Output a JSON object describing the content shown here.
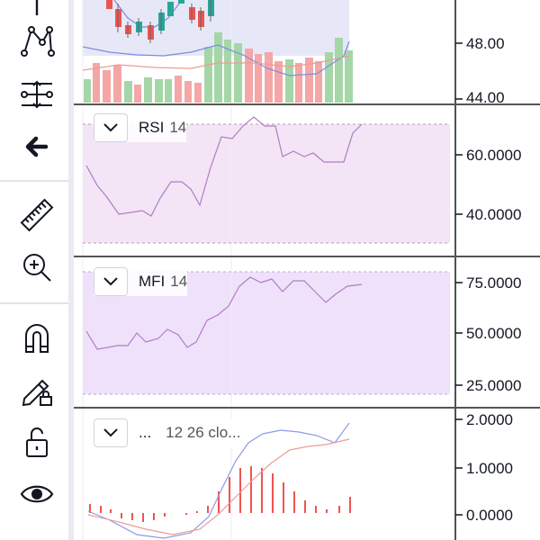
{
  "toolbar": {
    "tools": [
      {
        "name": "pitchfork-icon"
      },
      {
        "name": "pattern-icon"
      },
      {
        "name": "measure-projection-icon"
      },
      {
        "name": "back-arrow-icon"
      },
      {
        "name": "ruler-icon"
      },
      {
        "name": "zoom-in-icon"
      },
      {
        "name": "magnet-icon"
      },
      {
        "name": "lock-drawing-icon"
      },
      {
        "name": "unlock-icon"
      },
      {
        "name": "eye-icon"
      }
    ]
  },
  "panes": {
    "price": {
      "axis_labels": [
        "48.00",
        "44.00"
      ]
    },
    "rsi": {
      "name": "RSI",
      "param": "14",
      "axis_labels": [
        "60.0000",
        "40.0000"
      ]
    },
    "mfi": {
      "name": "MFI",
      "param": "14",
      "axis_labels": [
        "75.0000",
        "50.0000",
        "25.0000"
      ]
    },
    "macd": {
      "name": "...",
      "param": "12 26 clo...",
      "axis_labels": [
        "2.0000",
        "1.0000",
        "0.0000"
      ]
    }
  },
  "colors": {
    "up": "#26a69a",
    "down": "#ef5350",
    "rsi_fill": "#f3e5f5",
    "mfi_fill": "#f0e1fb",
    "indicator_line": "#9c27b0",
    "macd_line": "#7e8ce0",
    "signal_line": "#ef7373"
  }
}
